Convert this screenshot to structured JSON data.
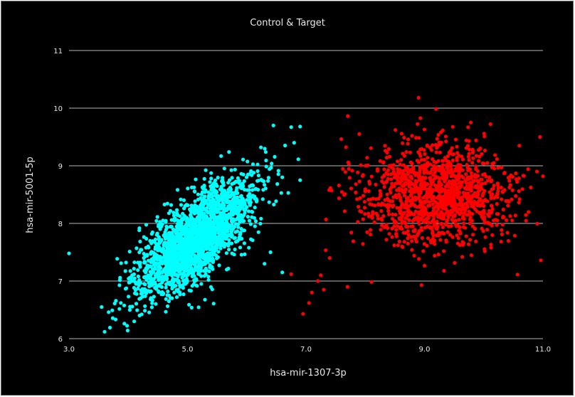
{
  "chart_data": {
    "type": "scatter",
    "title": "Control & Target",
    "xlabel": "hsa-mir-1307-3p",
    "ylabel": "hsa-mir-5001-5p",
    "xlim": [
      3.0,
      11.0
    ],
    "ylim": [
      6,
      11
    ],
    "x_ticks": [
      "3.0",
      "5.0",
      "7.0",
      "9.0",
      "11.0"
    ],
    "y_ticks": [
      "6",
      "7",
      "8",
      "9",
      "10",
      "11"
    ],
    "grid": "horizontal",
    "legend": "none",
    "series": [
      {
        "color": "#00ffff",
        "point_count": 2200,
        "center": [
          5.15,
          7.75
        ],
        "spread": [
          0.48,
          0.5
        ],
        "correlation": 0.72,
        "x": [
          3.0,
          3.6,
          3.55,
          4.1,
          6.45,
          6.75,
          6.9,
          6.8,
          6.6,
          6.9,
          6.6,
          6.4,
          6.3
        ],
        "y": [
          7.48,
          6.12,
          6.55,
          6.3,
          9.7,
          9.67,
          9.68,
          9.4,
          8.8,
          8.75,
          7.15,
          7.5,
          7.3
        ]
      },
      {
        "color": "#ff0000",
        "point_count": 1300,
        "center": [
          9.2,
          8.5
        ],
        "spread": [
          0.62,
          0.45
        ],
        "correlation": 0.0,
        "x": [
          8.9,
          11.0,
          10.95,
          9.0,
          8.95,
          6.95,
          7.05,
          7.1,
          7.25,
          7.3,
          7.2,
          7.7,
          7.4,
          7.9,
          10.6,
          6.75
        ],
        "y": [
          10.18,
          8.82,
          9.5,
          9.63,
          6.93,
          6.43,
          6.62,
          6.8,
          7.1,
          6.85,
          7.0,
          6.9,
          7.4,
          9.55,
          9.35,
          7.12
        ]
      }
    ]
  }
}
